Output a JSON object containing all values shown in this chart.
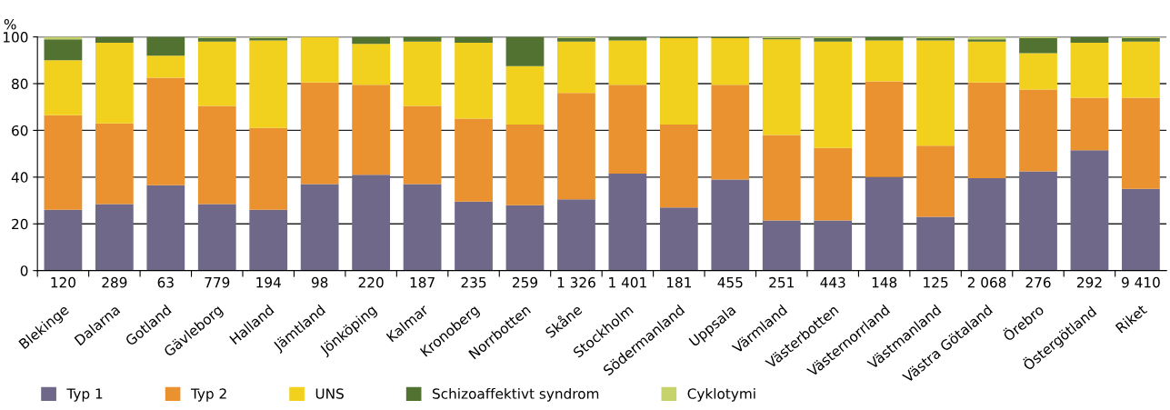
{
  "chart_data": {
    "type": "bar",
    "stacked": true,
    "ylabel": "%",
    "categories": [
      "Blekinge",
      "Dalarna",
      "Gotland",
      "Gävleborg",
      "Halland",
      "Jämtland",
      "Jönköping",
      "Kalmar",
      "Kronoberg",
      "Norrbotten",
      "Skåne",
      "Stockholm",
      "Södermanland",
      "Uppsala",
      "Värmland",
      "Västerbotten",
      "Västernorrland",
      "Västmanland",
      "Västra Götaland",
      "Örebro",
      "Östergötland",
      "Riket"
    ],
    "series": [
      {
        "name": "Typ 1",
        "color": "#6f6889",
        "values": [
          26,
          28.5,
          36.5,
          28.5,
          26,
          37,
          41,
          37,
          29.5,
          28,
          30.5,
          41.5,
          27,
          39,
          21.5,
          21.5,
          40,
          23,
          39.5,
          42.5,
          51.5,
          35
        ]
      },
      {
        "name": "Typ 2",
        "color": "#e9922f",
        "values": [
          40.5,
          34.5,
          46,
          42,
          35,
          43.5,
          38.5,
          33.5,
          35.5,
          34.5,
          45.5,
          38,
          35.5,
          40.5,
          36.5,
          31,
          41,
          30.5,
          41,
          35,
          22.5,
          39
        ]
      },
      {
        "name": "UNS",
        "color": "#f2d01e",
        "values": [
          23.5,
          34.5,
          9.5,
          27.5,
          37.5,
          19.5,
          17.5,
          27.5,
          32.5,
          25,
          22,
          19,
          37,
          20,
          41,
          45.5,
          17.5,
          45,
          17.5,
          15.5,
          23.5,
          24
        ]
      },
      {
        "name": "Schizoaffektivt syndrom",
        "color": "#517231",
        "values": [
          9,
          2.5,
          8,
          1.5,
          1,
          0,
          3,
          2,
          2.5,
          12.5,
          1.5,
          1.5,
          0.5,
          0.5,
          0.5,
          1.5,
          1.5,
          1,
          1,
          6.5,
          2.5,
          1.5
        ]
      },
      {
        "name": "Cyklotymi",
        "color": "#c5d36a",
        "values": [
          1,
          0,
          0,
          0.5,
          0.5,
          0,
          0,
          0,
          0,
          0,
          0.5,
          0,
          0,
          0,
          0.5,
          0.5,
          0,
          0.5,
          1,
          0.5,
          0,
          0.5
        ]
      }
    ],
    "ylim": [
      0,
      100
    ],
    "yticks": [
      0,
      20,
      40,
      60,
      80,
      100
    ],
    "grid": "y",
    "legend": "bottom left",
    "annotations": [
      "120",
      "289",
      "63",
      "779",
      "194",
      "98",
      "220",
      "187",
      "235",
      "259",
      "1 326",
      "1 401",
      "181",
      "455",
      "251",
      "443",
      "148",
      "125",
      "2 068",
      "276",
      "292",
      "9 410"
    ]
  }
}
